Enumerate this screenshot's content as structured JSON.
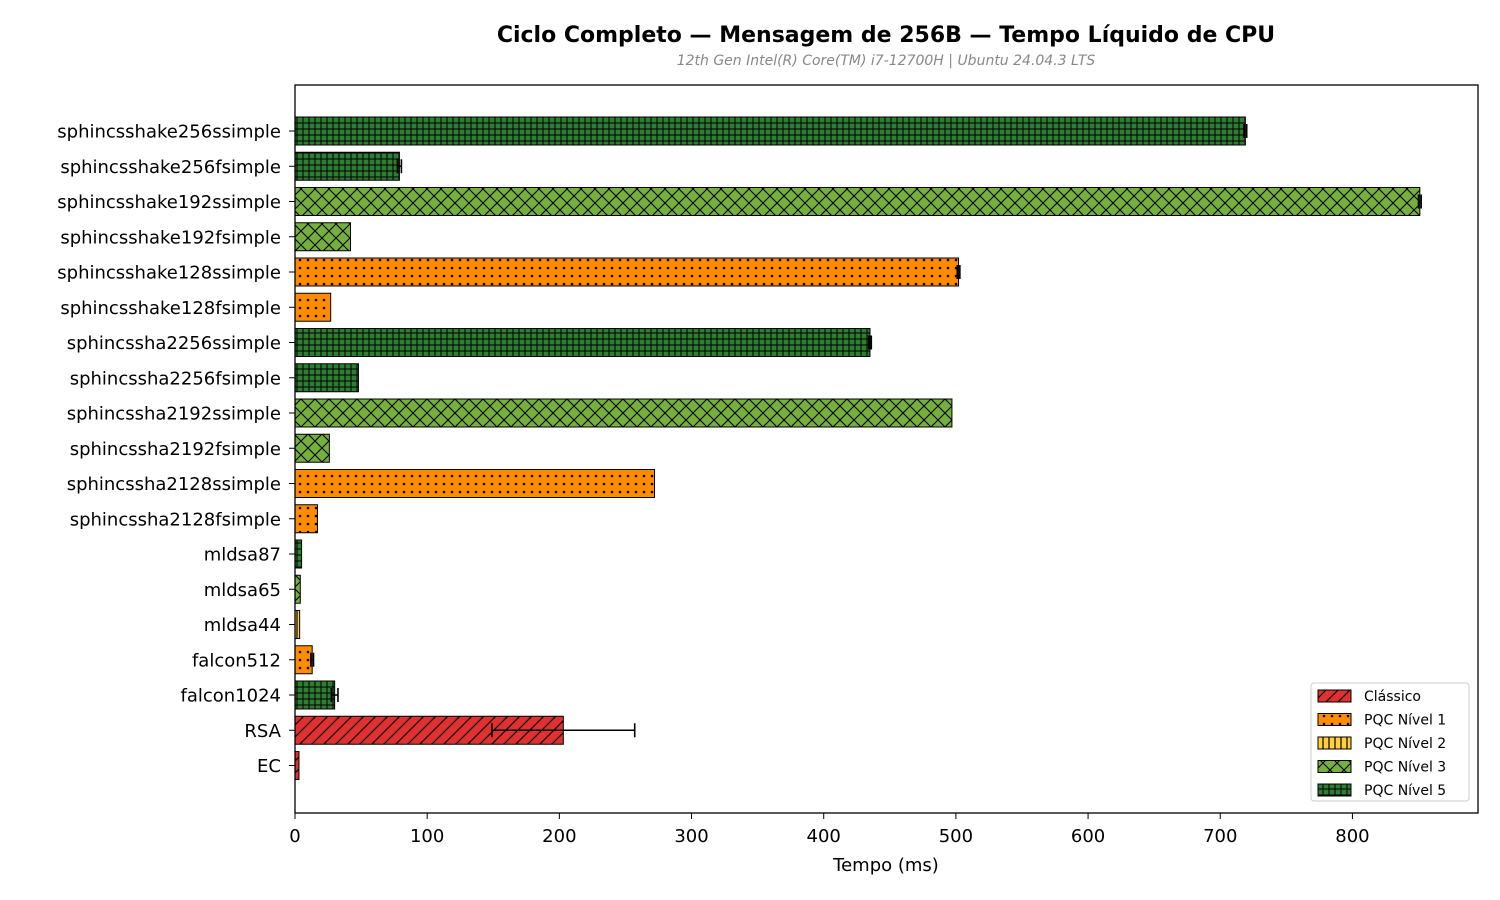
{
  "chart_data": {
    "type": "bar",
    "orientation": "horizontal",
    "title": "Ciclo Completo — Mensagem de 256B — Tempo Líquido de CPU",
    "subtitle": "12th Gen Intel(R) Core(TM) i7-12700H | Ubuntu 24.04.3 LTS",
    "xlabel": "Tempo (ms)",
    "ylabel": "",
    "xlim": [
      0,
      895
    ],
    "xticks": [
      0,
      100,
      200,
      300,
      400,
      500,
      600,
      700,
      800
    ],
    "grid": false,
    "legend_position": "lower-right",
    "categories": [
      {
        "name": "sphincsshake256ssimple",
        "value": 719,
        "error": 1,
        "group": "PQC Nível 5"
      },
      {
        "name": "sphincsshake256fsimple",
        "value": 79,
        "error": 1.5,
        "group": "PQC Nível 5"
      },
      {
        "name": "sphincsshake192ssimple",
        "value": 851,
        "error": 1,
        "group": "PQC Nível 3"
      },
      {
        "name": "sphincsshake192fsimple",
        "value": 42,
        "error": 0,
        "group": "PQC Nível 3"
      },
      {
        "name": "sphincsshake128ssimple",
        "value": 502,
        "error": 1,
        "group": "PQC Nível 1"
      },
      {
        "name": "sphincsshake128fsimple",
        "value": 27,
        "error": 0,
        "group": "PQC Nível 1"
      },
      {
        "name": "sphincssha2256ssimple",
        "value": 435,
        "error": 1,
        "group": "PQC Nível 5"
      },
      {
        "name": "sphincssha2256fsimple",
        "value": 48,
        "error": 0,
        "group": "PQC Nível 5"
      },
      {
        "name": "sphincssha2192ssimple",
        "value": 497,
        "error": 0,
        "group": "PQC Nível 3"
      },
      {
        "name": "sphincssha2192fsimple",
        "value": 26,
        "error": 0,
        "group": "PQC Nível 3"
      },
      {
        "name": "sphincssha2128ssimple",
        "value": 272,
        "error": 0,
        "group": "PQC Nível 1"
      },
      {
        "name": "sphincssha2128fsimple",
        "value": 17,
        "error": 0,
        "group": "PQC Nível 1"
      },
      {
        "name": "mldsa87",
        "value": 5,
        "error": 0,
        "group": "PQC Nível 5"
      },
      {
        "name": "mldsa65",
        "value": 4,
        "error": 0,
        "group": "PQC Nível 3"
      },
      {
        "name": "mldsa44",
        "value": 3.5,
        "error": 0,
        "group": "PQC Nível 2"
      },
      {
        "name": "falcon512",
        "value": 13,
        "error": 1,
        "group": "PQC Nível 1"
      },
      {
        "name": "falcon1024",
        "value": 30,
        "error": 2.5,
        "group": "PQC Nível 5"
      },
      {
        "name": "RSA",
        "value": 203,
        "error": 54,
        "group": "Clássico"
      },
      {
        "name": "EC",
        "value": 3,
        "error": 0,
        "group": "Clássico"
      }
    ],
    "legend": [
      {
        "label": "Clássico",
        "color": "#e03030",
        "hatch": "diagonal"
      },
      {
        "label": "PQC Nível 1",
        "color": "#ff8c00",
        "hatch": "dots"
      },
      {
        "label": "PQC Nível 2",
        "color": "#ffd040",
        "hatch": "vertical"
      },
      {
        "label": "PQC Nível 3",
        "color": "#76b03c",
        "hatch": "crosshatch"
      },
      {
        "label": "PQC Nível 5",
        "color": "#2e7d32",
        "hatch": "grid"
      }
    ]
  }
}
